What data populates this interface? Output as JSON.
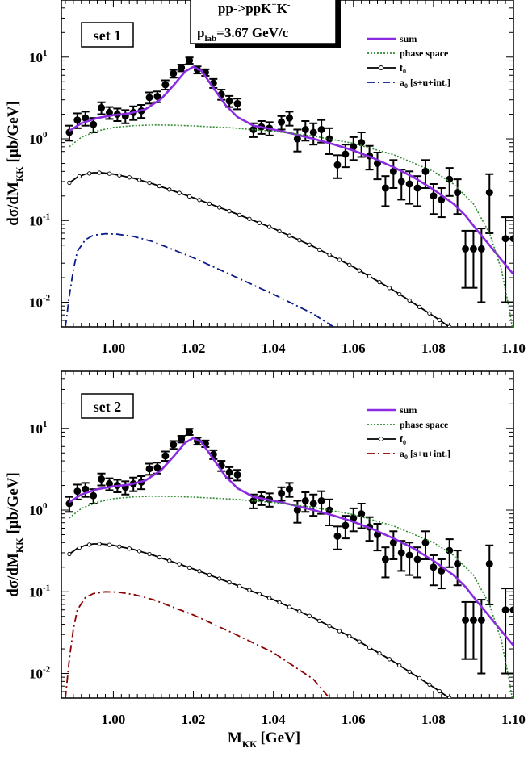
{
  "figure": {
    "xlabel_main": "M",
    "xlabel_sub": "KK",
    "xlabel_unit": "[GeV]"
  },
  "reaction_box": {
    "line1": "pp->ppK",
    "line1_sup1": "+",
    "line1_mid": "K",
    "line1_sup2": "-",
    "line2_main": "p",
    "line2_sub": "lab",
    "line2_rest": "=3.67 GeV/c"
  },
  "colors": {
    "sum": "#8a2be2",
    "phase_space": "#2e8b2e",
    "f0": "#000000",
    "a0_set1": "#0a1a8a",
    "a0_set2": "#8b0000",
    "data": "#000000"
  },
  "chart_data": [
    {
      "type": "line",
      "title": "set 1",
      "ylabel_main": "dσ/dM",
      "ylabel_sub": "KK",
      "ylabel_unit": "[μb/GeV]",
      "xlim": [
        0.987,
        1.1
      ],
      "ylim": [
        0.005,
        50
      ],
      "yscale": "log",
      "xticks": [
        "1.00",
        "1.02",
        "1.04",
        "1.06",
        "1.08",
        "1.10"
      ],
      "xtick_values": [
        1.0,
        1.02,
        1.04,
        1.06,
        1.08,
        1.1
      ],
      "yticks": [
        {
          "base": "10",
          "exp": "1",
          "value": 10
        },
        {
          "base": "10",
          "exp": "0",
          "value": 1
        },
        {
          "base": "10",
          "exp": "-1",
          "value": 0.1
        },
        {
          "base": "10",
          "exp": "-2",
          "value": 0.01
        }
      ],
      "legend_position": "top-right",
      "series": [
        {
          "name": "sum",
          "key": "sum",
          "x": [
            0.989,
            0.992,
            0.996,
            1.0,
            1.004,
            1.008,
            1.012,
            1.015,
            1.018,
            1.02,
            1.022,
            1.025,
            1.028,
            1.031,
            1.035,
            1.04,
            1.045,
            1.05,
            1.055,
            1.06,
            1.065,
            1.07,
            1.075,
            1.08,
            1.085,
            1.088,
            1.091,
            1.094,
            1.097,
            1.1
          ],
          "y": [
            1.25,
            1.55,
            1.8,
            1.95,
            2.05,
            2.3,
            3.1,
            4.5,
            6.7,
            7.6,
            6.8,
            4.2,
            2.6,
            1.85,
            1.45,
            1.3,
            1.15,
            1.0,
            0.86,
            0.72,
            0.58,
            0.45,
            0.34,
            0.24,
            0.16,
            0.115,
            0.075,
            0.05,
            0.033,
            0.022
          ]
        },
        {
          "name": "phase space",
          "key": "phase_space",
          "x": [
            0.989,
            0.992,
            0.996,
            1.0,
            1.005,
            1.01,
            1.015,
            1.02,
            1.03,
            1.04,
            1.05,
            1.06,
            1.07,
            1.08,
            1.085,
            1.09,
            1.094,
            1.097,
            1.099,
            1.1
          ],
          "y": [
            0.8,
            1.05,
            1.25,
            1.38,
            1.45,
            1.48,
            1.47,
            1.44,
            1.36,
            1.24,
            1.08,
            0.88,
            0.64,
            0.4,
            0.28,
            0.16,
            0.07,
            0.025,
            0.008,
            0.004
          ]
        },
        {
          "name": "f",
          "name_sub": "0",
          "key": "f0",
          "marker": "open-circle",
          "x": [
            0.989,
            0.991,
            0.993,
            0.995,
            0.997,
            1.0,
            1.005,
            1.01,
            1.02,
            1.03,
            1.04,
            1.05,
            1.06,
            1.07,
            1.08,
            1.084
          ],
          "y": [
            0.29,
            0.34,
            0.37,
            0.385,
            0.385,
            0.37,
            0.33,
            0.28,
            0.19,
            0.125,
            0.08,
            0.048,
            0.027,
            0.014,
            0.0068,
            0.005
          ]
        },
        {
          "name": "a",
          "name_sub": "0",
          "name_rest": " [s+u+int.]",
          "key": "a0_set1",
          "dash": "dashdot",
          "x": [
            0.988,
            0.989,
            0.99,
            0.991,
            0.993,
            0.995,
            0.998,
            1.001,
            1.005,
            1.01,
            1.02,
            1.03,
            1.04,
            1.05,
            1.055
          ],
          "y": [
            0.005,
            0.012,
            0.025,
            0.042,
            0.058,
            0.066,
            0.069,
            0.068,
            0.064,
            0.055,
            0.035,
            0.021,
            0.0125,
            0.0072,
            0.005
          ]
        }
      ],
      "data_points": {
        "name": "data",
        "x": [
          0.989,
          0.991,
          0.993,
          0.995,
          0.997,
          0.999,
          1.001,
          1.003,
          1.005,
          1.007,
          1.009,
          1.011,
          1.013,
          1.015,
          1.017,
          1.019,
          1.021,
          1.023,
          1.025,
          1.027,
          1.029,
          1.031,
          1.035,
          1.037,
          1.039,
          1.042,
          1.044,
          1.046,
          1.048,
          1.05,
          1.052,
          1.054,
          1.056,
          1.058,
          1.06,
          1.062,
          1.064,
          1.066,
          1.068,
          1.07,
          1.072,
          1.074,
          1.076,
          1.078,
          1.08,
          1.082,
          1.084,
          1.086,
          1.088,
          1.09,
          1.092,
          1.094,
          1.098,
          1.1
        ],
        "y": [
          1.2,
          1.7,
          1.8,
          1.5,
          2.4,
          2.1,
          2.0,
          1.9,
          2.1,
          2.2,
          3.2,
          3.3,
          4.6,
          6.3,
          7.4,
          9.1,
          7.0,
          6.5,
          4.8,
          3.5,
          2.9,
          2.7,
          1.3,
          1.4,
          1.35,
          1.6,
          1.8,
          1.0,
          1.3,
          1.2,
          1.3,
          1.0,
          0.48,
          0.65,
          0.8,
          0.9,
          0.62,
          0.5,
          0.25,
          0.4,
          0.3,
          0.28,
          0.25,
          0.4,
          0.2,
          0.18,
          0.32,
          0.22,
          0.045,
          0.045,
          0.045,
          0.22,
          0.06,
          0.06
        ],
        "err": [
          0.25,
          0.35,
          0.35,
          0.3,
          0.4,
          0.35,
          0.35,
          0.35,
          0.4,
          0.4,
          0.5,
          0.5,
          0.6,
          0.7,
          0.7,
          0.8,
          0.7,
          0.6,
          0.6,
          0.5,
          0.45,
          0.4,
          0.25,
          0.25,
          0.25,
          0.3,
          0.35,
          0.3,
          0.35,
          0.35,
          0.4,
          0.35,
          0.15,
          0.2,
          0.25,
          0.3,
          0.2,
          0.18,
          0.1,
          0.15,
          0.12,
          0.12,
          0.1,
          0.15,
          0.08,
          0.07,
          0.12,
          0.1,
          0.03,
          0.03,
          0.035,
          0.15,
          0.05,
          0.05
        ]
      }
    },
    {
      "type": "line",
      "title": "set 2",
      "ylabel_main": "dσ/dM",
      "ylabel_sub": "KK",
      "ylabel_unit": "[μb/GeV]",
      "xlim": [
        0.987,
        1.1
      ],
      "ylim": [
        0.005,
        50
      ],
      "yscale": "log",
      "xticks": [
        "1.00",
        "1.02",
        "1.04",
        "1.06",
        "1.08",
        "1.10"
      ],
      "xtick_values": [
        1.0,
        1.02,
        1.04,
        1.06,
        1.08,
        1.1
      ],
      "yticks": [
        {
          "base": "10",
          "exp": "1",
          "value": 10
        },
        {
          "base": "10",
          "exp": "0",
          "value": 1
        },
        {
          "base": "10",
          "exp": "-1",
          "value": 0.1
        },
        {
          "base": "10",
          "exp": "-2",
          "value": 0.01
        }
      ],
      "legend_position": "top-right",
      "series": [
        {
          "name": "sum",
          "key": "sum",
          "x": [
            0.989,
            0.992,
            0.996,
            1.0,
            1.004,
            1.008,
            1.012,
            1.015,
            1.018,
            1.02,
            1.022,
            1.025,
            1.028,
            1.031,
            1.035,
            1.04,
            1.045,
            1.05,
            1.055,
            1.06,
            1.065,
            1.07,
            1.075,
            1.08,
            1.085,
            1.088,
            1.091,
            1.094,
            1.097,
            1.1
          ],
          "y": [
            1.25,
            1.55,
            1.8,
            1.95,
            2.05,
            2.3,
            3.1,
            4.5,
            6.7,
            7.6,
            6.8,
            4.2,
            2.6,
            1.85,
            1.45,
            1.3,
            1.15,
            1.0,
            0.86,
            0.72,
            0.58,
            0.45,
            0.34,
            0.24,
            0.16,
            0.115,
            0.075,
            0.05,
            0.033,
            0.022
          ]
        },
        {
          "name": "phase space",
          "key": "phase_space",
          "x": [
            0.989,
            0.992,
            0.996,
            1.0,
            1.005,
            1.01,
            1.015,
            1.02,
            1.03,
            1.04,
            1.05,
            1.06,
            1.07,
            1.08,
            1.085,
            1.09,
            1.094,
            1.097,
            1.099,
            1.1
          ],
          "y": [
            0.8,
            1.05,
            1.25,
            1.38,
            1.45,
            1.48,
            1.47,
            1.44,
            1.36,
            1.24,
            1.08,
            0.88,
            0.64,
            0.4,
            0.28,
            0.16,
            0.07,
            0.025,
            0.008,
            0.004
          ]
        },
        {
          "name": "f",
          "name_sub": "0",
          "key": "f0",
          "marker": "open-circle",
          "x": [
            0.989,
            0.991,
            0.993,
            0.995,
            0.997,
            1.0,
            1.005,
            1.01,
            1.02,
            1.03,
            1.04,
            1.05,
            1.06,
            1.07,
            1.08,
            1.084
          ],
          "y": [
            0.29,
            0.34,
            0.37,
            0.385,
            0.385,
            0.37,
            0.33,
            0.28,
            0.19,
            0.125,
            0.08,
            0.048,
            0.027,
            0.014,
            0.0068,
            0.005
          ]
        },
        {
          "name": "a",
          "name_sub": "0",
          "name_rest": " [s+u+int.]",
          "key": "a0_set2",
          "dash": "dashdot",
          "x": [
            0.988,
            0.989,
            0.99,
            0.991,
            0.993,
            0.995,
            0.998,
            1.001,
            1.005,
            1.01,
            1.02,
            1.03,
            1.04,
            1.05,
            1.054
          ],
          "y": [
            0.005,
            0.015,
            0.035,
            0.06,
            0.085,
            0.095,
            0.1,
            0.099,
            0.093,
            0.08,
            0.052,
            0.031,
            0.018,
            0.0085,
            0.005
          ]
        }
      ],
      "data_points": {
        "name": "data",
        "x": [
          0.989,
          0.991,
          0.993,
          0.995,
          0.997,
          0.999,
          1.001,
          1.003,
          1.005,
          1.007,
          1.009,
          1.011,
          1.013,
          1.015,
          1.017,
          1.019,
          1.021,
          1.023,
          1.025,
          1.027,
          1.029,
          1.031,
          1.035,
          1.037,
          1.039,
          1.042,
          1.044,
          1.046,
          1.048,
          1.05,
          1.052,
          1.054,
          1.056,
          1.058,
          1.06,
          1.062,
          1.064,
          1.066,
          1.068,
          1.07,
          1.072,
          1.074,
          1.076,
          1.078,
          1.08,
          1.082,
          1.084,
          1.086,
          1.088,
          1.09,
          1.092,
          1.094,
          1.098,
          1.1
        ],
        "y": [
          1.2,
          1.7,
          1.8,
          1.5,
          2.4,
          2.1,
          2.0,
          1.9,
          2.1,
          2.2,
          3.2,
          3.3,
          4.6,
          6.3,
          7.4,
          9.1,
          7.0,
          6.5,
          4.8,
          3.5,
          2.9,
          2.7,
          1.3,
          1.4,
          1.35,
          1.6,
          1.8,
          1.0,
          1.3,
          1.2,
          1.3,
          1.0,
          0.48,
          0.65,
          0.8,
          0.9,
          0.62,
          0.5,
          0.25,
          0.4,
          0.3,
          0.28,
          0.25,
          0.4,
          0.2,
          0.18,
          0.32,
          0.22,
          0.045,
          0.045,
          0.045,
          0.22,
          0.06,
          0.06
        ],
        "err": [
          0.25,
          0.35,
          0.35,
          0.3,
          0.4,
          0.35,
          0.35,
          0.35,
          0.4,
          0.4,
          0.5,
          0.5,
          0.6,
          0.7,
          0.7,
          0.8,
          0.7,
          0.6,
          0.6,
          0.5,
          0.45,
          0.4,
          0.25,
          0.25,
          0.25,
          0.3,
          0.35,
          0.3,
          0.35,
          0.35,
          0.4,
          0.35,
          0.15,
          0.2,
          0.25,
          0.3,
          0.2,
          0.18,
          0.1,
          0.15,
          0.12,
          0.12,
          0.1,
          0.15,
          0.08,
          0.07,
          0.12,
          0.1,
          0.03,
          0.03,
          0.035,
          0.15,
          0.05,
          0.05
        ]
      }
    }
  ]
}
